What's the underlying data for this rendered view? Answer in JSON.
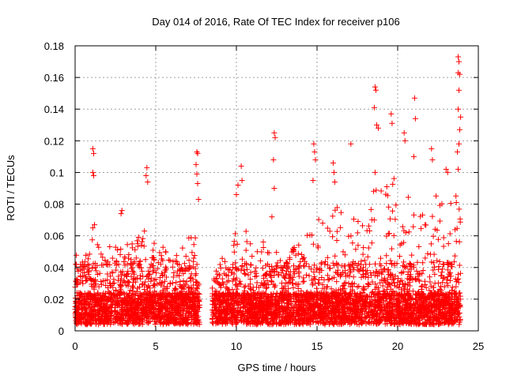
{
  "chart_data": {
    "type": "scatter",
    "title": "Day 014 of 2016, Rate Of TEC Index for receiver p106",
    "xlabel": "GPS time / hours",
    "ylabel": "ROTI / TECUs",
    "xlim": [
      0,
      25
    ],
    "ylim": [
      0,
      0.18
    ],
    "xticks": [
      0,
      5,
      10,
      15,
      20,
      25
    ],
    "xtick_labels": [
      "0",
      "5",
      "10",
      "15",
      "20",
      "25"
    ],
    "yticks": [
      0,
      0.02,
      0.04,
      0.06,
      0.08,
      0.1,
      0.12,
      0.14,
      0.16,
      0.18
    ],
    "ytick_labels": [
      "0",
      "0.02",
      "0.04",
      "0.06",
      "0.08",
      "0.1",
      "0.12",
      "0.14",
      "0.16",
      "0.18"
    ],
    "grid": true,
    "marker": "+",
    "series": [
      {
        "name": "ROTI",
        "color": "#ff0000",
        "envelope": {
          "description": "Dense band of ROTI samples (0.005 - 0.03 TECUs) with spikes; upper envelope by hour",
          "x": [
            0,
            0.5,
            1,
            1.5,
            2,
            2.5,
            3,
            3.5,
            4,
            4.5,
            5,
            5.5,
            6,
            6.5,
            7,
            7.5,
            7.7,
            8.6,
            9,
            9.5,
            10,
            10.5,
            11,
            11.5,
            12,
            12.5,
            13,
            13.5,
            14,
            14.5,
            15,
            15.5,
            16,
            16.5,
            17,
            17.5,
            18,
            18.5,
            19,
            19.5,
            20,
            20.5,
            21,
            21.5,
            22,
            22.5,
            23,
            23.5,
            23.9
          ],
          "peak": [
            0.045,
            0.05,
            0.055,
            0.052,
            0.05,
            0.055,
            0.05,
            0.052,
            0.06,
            0.058,
            0.05,
            0.05,
            0.045,
            0.048,
            0.055,
            0.06,
            0.04,
            0.03,
            0.04,
            0.055,
            0.065,
            0.06,
            0.055,
            0.05,
            0.06,
            0.055,
            0.05,
            0.05,
            0.055,
            0.06,
            0.07,
            0.065,
            0.08,
            0.075,
            0.065,
            0.07,
            0.08,
            0.09,
            0.085,
            0.09,
            0.095,
            0.09,
            0.085,
            0.08,
            0.09,
            0.085,
            0.08,
            0.085,
            0.08
          ]
        },
        "x": [
          1.1,
          1.15,
          1.1,
          1.15,
          1.2,
          1.1,
          2.9,
          2.85,
          4.4,
          4.45,
          4.5,
          4.3,
          7.55,
          7.6,
          7.5,
          7.55,
          7.6,
          7.65,
          10.3,
          10.35,
          10.1,
          10.0,
          12.35,
          12.4,
          12.3,
          12.35,
          12.2,
          14.8,
          14.85,
          14.9,
          14.75,
          16.0,
          16.05,
          16.1,
          17.1,
          18.6,
          18.65,
          18.55,
          18.7,
          18.8,
          18.6,
          19.6,
          19.65,
          20.4,
          20.45,
          21.05,
          21.1,
          21.0,
          22.1,
          22.15,
          23.0,
          23.1,
          23.75,
          23.8,
          23.75,
          23.85,
          23.8,
          23.75,
          23.9,
          23.85,
          23.8,
          23.7,
          23.75
        ],
        "y": [
          0.115,
          0.112,
          0.1,
          0.098,
          0.067,
          0.065,
          0.076,
          0.074,
          0.098,
          0.103,
          0.094,
          0.063,
          0.113,
          0.112,
          0.105,
          0.099,
          0.093,
          0.083,
          0.104,
          0.095,
          0.092,
          0.086,
          0.125,
          0.122,
          0.108,
          0.09,
          0.072,
          0.118,
          0.113,
          0.108,
          0.095,
          0.106,
          0.1,
          0.094,
          0.118,
          0.154,
          0.152,
          0.141,
          0.13,
          0.128,
          0.1,
          0.137,
          0.131,
          0.125,
          0.12,
          0.147,
          0.134,
          0.11,
          0.115,
          0.108,
          0.102,
          0.1,
          0.173,
          0.17,
          0.163,
          0.162,
          0.152,
          0.14,
          0.135,
          0.127,
          0.118,
          0.113,
          0.102
        ]
      }
    ]
  }
}
